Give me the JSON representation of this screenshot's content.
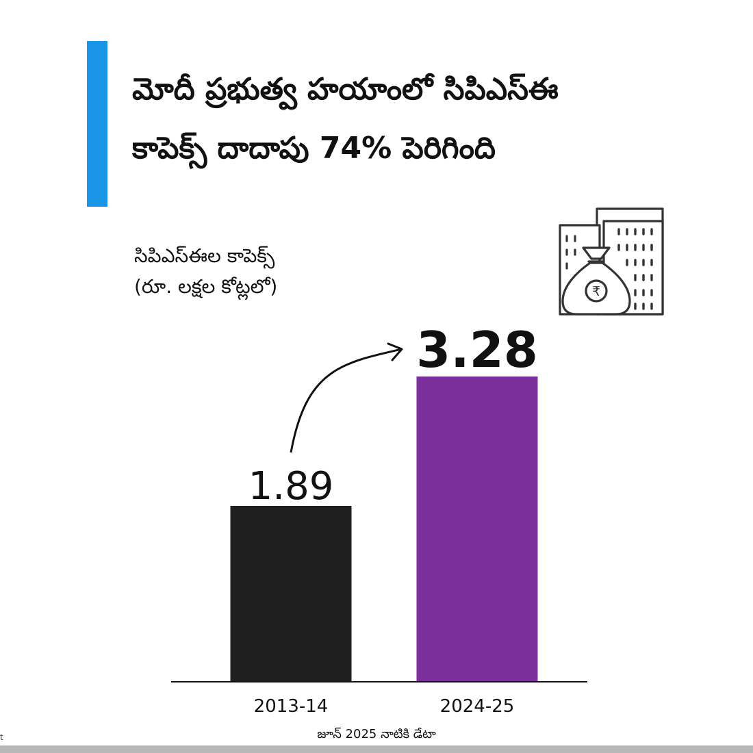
{
  "title": {
    "line1": "మోదీ ప్రభుత్వ హయాంలో సిపిఎస్ఈ",
    "line2": "కాపెక్స్ దాదాపు 74% పెరిగింది"
  },
  "footer_note": "జూన్ 2025 నాటికి డేటా",
  "corner_mark": "t",
  "icon": "building-money-bag-rupee-icon",
  "colors": {
    "accent": "#1a96e8",
    "bar_2013": "#1f1f1f",
    "bar_2024": "#7a2f9b",
    "axis": "#111111",
    "text": "#111111"
  },
  "chart_data": {
    "type": "bar",
    "title": "మోదీ ప్రభుత్వ హయాంలో సిపిఎస్ఈ కాపెక్స్ దాదాపు 74% పెరిగింది",
    "ylabel_lines": [
      "సిపిఎస్ఈల కాపెక్స్",
      "(రూ. లక్షల కోట్లలో)"
    ],
    "xlabel": "",
    "categories": [
      "2013-14",
      "2024-25"
    ],
    "values": [
      1.89,
      3.28
    ],
    "value_labels": [
      "1.89",
      "3.28"
    ],
    "ylim": [
      0,
      3.28
    ],
    "grid": false,
    "legend": "none",
    "annotation": "arrow from 2013-14 to 2024-25"
  }
}
